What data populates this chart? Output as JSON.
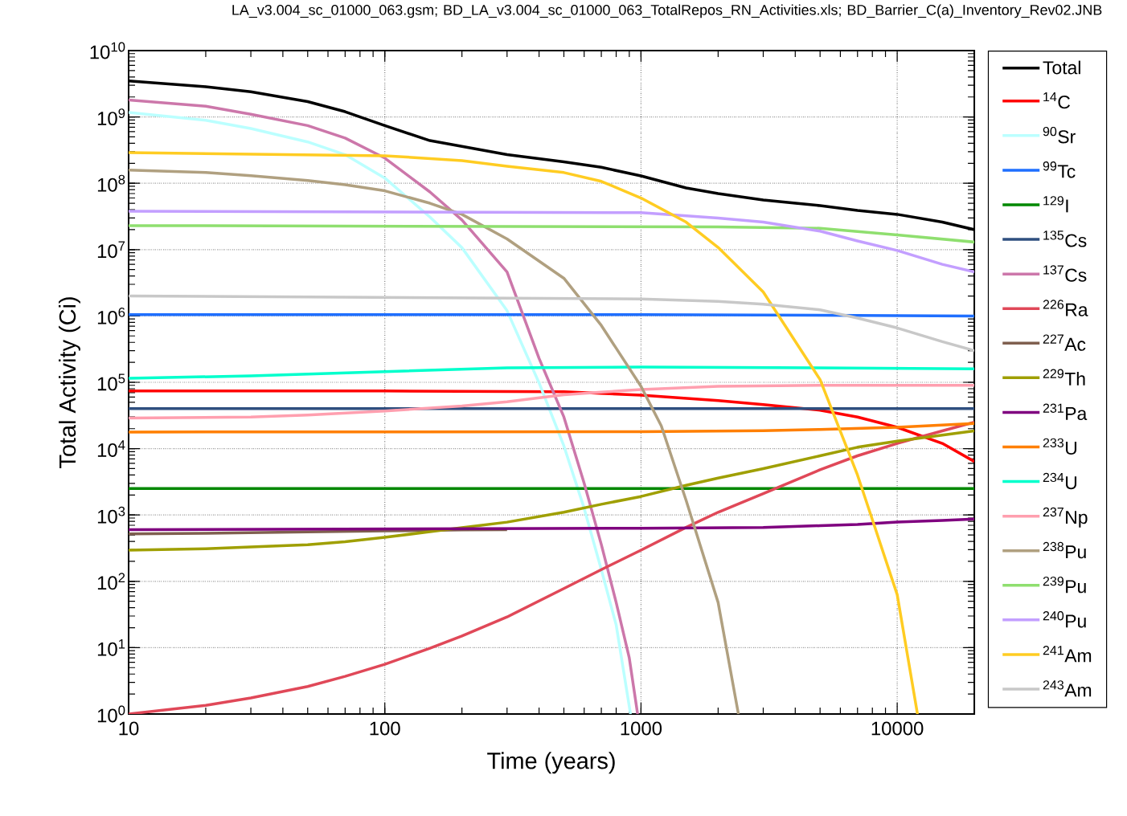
{
  "chart_data": {
    "type": "line",
    "title": "LA_v3.004_sc_01000_063.gsm; BD_LA_v3.004_sc_01000_063_TotalRepos_RN_Activities.xls; BD_Barrier_C(a)_Inventory_Rev02.JNB",
    "xlabel": "Time (years)",
    "ylabel": "Total Activity (Ci)",
    "log": "xy",
    "grid": true,
    "legend": "right",
    "marker": "none",
    "line_style": "solid",
    "xlim": [
      10,
      20000
    ],
    "ylim": [
      1,
      10000000000
    ],
    "xticks": [
      10,
      100,
      1000,
      10000
    ],
    "yticks": [
      {
        "value": 1,
        "label": "10$^{0}$"
      },
      {
        "value": 10,
        "label": "10$^{1}$"
      },
      {
        "value": 100,
        "label": "10$^{2}$"
      },
      {
        "value": 1000,
        "label": "10$^{3}$"
      },
      {
        "value": 10000,
        "label": "10$^{4}$"
      },
      {
        "value": 100000,
        "label": "10$^{5}$"
      },
      {
        "value": 1000000,
        "label": "10$^{6}$"
      },
      {
        "value": 10000000,
        "label": "10$^{7}$"
      },
      {
        "value": 100000000,
        "label": "10$^{8}$"
      },
      {
        "value": 1000000000,
        "label": "10$^{9}$"
      },
      {
        "value": 10000000000,
        "label": "10$^{10}$"
      }
    ],
    "series": [
      {
        "name": "Total",
        "color": "#000000",
        "x": [
          10,
          20,
          30,
          50,
          70,
          100,
          150,
          200,
          300,
          500,
          700,
          1000,
          1500,
          2000,
          3000,
          5000,
          7000,
          10000,
          15000,
          20000
        ],
        "values": [
          3500000000.0,
          2850000000.0,
          2400000000.0,
          1700000000.0,
          1200000000.0,
          740000000.0,
          440000000.0,
          360000000.0,
          270000000.0,
          210000000.0,
          174000000.0,
          129000000.0,
          85000000.0,
          70000000.0,
          56000000.0,
          46000000.0,
          39000000.0,
          34000000.0,
          26000000.0,
          20000000.0
        ]
      },
      {
        "name": "$^{14}$C",
        "color": "#ff0000",
        "x": [
          10,
          100,
          500,
          1000,
          2000,
          3000,
          5000,
          7000,
          10000,
          15000,
          20000
        ],
        "values": [
          74000.0,
          74000.0,
          72000.0,
          64000.0,
          53000.0,
          46000.0,
          38000.0,
          30000.0,
          21000.0,
          12000.0,
          6400.0
        ]
      },
      {
        "name": "$^{90}$Sr",
        "color": "#bbffff",
        "x": [
          10,
          20,
          30,
          50,
          70,
          100,
          150,
          200,
          300,
          400,
          500,
          600,
          700,
          800,
          910
        ],
        "values": [
          1170000000.0,
          890000000.0,
          670000000.0,
          420000000.0,
          270000000.0,
          120000000.0,
          31000000.0,
          10700000.0,
          1200000.0,
          98000.0,
          11000.0,
          1260,
          150,
          22,
          1
        ]
      },
      {
        "name": "$^{99}$Tc",
        "color": "#1f6fff",
        "x": [
          10,
          1000,
          20000
        ],
        "values": [
          1050000.0,
          1050000.0,
          1000000.0
        ]
      },
      {
        "name": "$^{129}$I",
        "color": "#008800",
        "x": [
          10,
          20000
        ],
        "values": [
          2500,
          2500
        ]
      },
      {
        "name": "$^{135}$Cs",
        "color": "#2f4f7f",
        "x": [
          10,
          20000
        ],
        "values": [
          40000.0,
          40000.0
        ]
      },
      {
        "name": "$^{137}$Cs",
        "color": "#cc77aa",
        "x": [
          10,
          20,
          30,
          50,
          70,
          100,
          150,
          200,
          300,
          400,
          500,
          600,
          700,
          800,
          900,
          970
        ],
        "values": [
          1800000000.0,
          1450000000.0,
          1100000000.0,
          740000000.0,
          480000000.0,
          240000000.0,
          74000000.0,
          28000000.0,
          4600000.0,
          230000.0,
          30000.0,
          3000,
          360,
          48,
          7,
          1
        ]
      },
      {
        "name": "$^{226}$Ra",
        "color": "#e04858",
        "x": [
          10,
          20,
          30,
          50,
          70,
          100,
          150,
          200,
          300,
          500,
          700,
          1000,
          1500,
          2000,
          3000,
          5000,
          7000,
          10000,
          15000,
          20000
        ],
        "values": [
          1.0,
          1.35,
          1.75,
          2.6,
          3.7,
          5.6,
          9.8,
          15,
          29,
          78,
          150,
          295,
          650,
          1100,
          2100,
          4800,
          7800,
          12000.0,
          18500.0,
          25000.0
        ]
      },
      {
        "name": "$^{227}$Ac",
        "color": "#7f5f4f",
        "x": [
          10,
          20,
          50,
          100,
          200,
          300
        ],
        "values": [
          520,
          530,
          555,
          575,
          595,
          600
        ]
      },
      {
        "name": "$^{229}$Th",
        "color": "#9f9f00",
        "x": [
          10,
          20,
          30,
          50,
          70,
          100,
          150,
          200,
          300,
          500,
          700,
          1000,
          1500,
          2000,
          3000,
          5000,
          7000,
          10000,
          15000,
          20000
        ],
        "values": [
          295,
          310,
          330,
          355,
          395,
          460,
          560,
          645,
          780,
          1100,
          1450,
          1900,
          2800,
          3600,
          5000,
          7800,
          10500.0,
          13000.0,
          16000.0,
          18500.0
        ]
      },
      {
        "name": "$^{231}$Pa",
        "color": "#7f007f",
        "x": [
          10,
          1000,
          3000,
          5000,
          7000,
          10000,
          15000,
          20000
        ],
        "values": [
          600,
          630,
          650,
          690,
          720,
          780,
          830,
          870
        ]
      },
      {
        "name": "$^{233}$U",
        "color": "#ff7f00",
        "x": [
          10,
          1000,
          3000,
          5000,
          10000,
          20000
        ],
        "values": [
          17800.0,
          18000.0,
          18600.0,
          19500.0,
          21000.0,
          24000.0
        ]
      },
      {
        "name": "$^{234}$U",
        "color": "#00ffcc",
        "x": [
          10,
          30,
          100,
          300,
          1000,
          20000
        ],
        "values": [
          115000.0,
          125000.0,
          145000.0,
          165000.0,
          170000.0,
          160000.0
        ]
      },
      {
        "name": "$^{237}$Np",
        "color": "#ff9faf",
        "x": [
          10,
          30,
          50,
          100,
          200,
          300,
          500,
          700,
          1000,
          2000,
          5000,
          20000
        ],
        "values": [
          29000.0,
          30000.0,
          32000.0,
          37000.0,
          44000.0,
          51000.0,
          65000.0,
          71000.0,
          78000.0,
          87000.0,
          90000.0,
          90000.0
        ]
      },
      {
        "name": "$^{238}$Pu",
        "color": "#b0a080",
        "x": [
          10,
          20,
          30,
          50,
          70,
          100,
          150,
          200,
          300,
          500,
          700,
          1000,
          1200,
          1500,
          2000,
          2400
        ],
        "values": [
          158000000.0,
          145000000.0,
          130000000.0,
          110000000.0,
          95000000.0,
          77000000.0,
          50000000.0,
          34000000.0,
          14500000.0,
          3700000.0,
          720000.0,
          87000.0,
          22000.0,
          1660,
          48,
          1
        ]
      },
      {
        "name": "$^{239}$Pu",
        "color": "#8fdf6f",
        "x": [
          10,
          2000,
          5000,
          10000,
          20000
        ],
        "values": [
          23000000.0,
          22000000.0,
          21000000.0,
          16600000.0,
          13000000.0
        ]
      },
      {
        "name": "$^{240}$Pu",
        "color": "#c39fff",
        "x": [
          10,
          1000,
          2000,
          3000,
          5000,
          7000,
          10000,
          15000,
          20000
        ],
        "values": [
          38000000.0,
          36000000.0,
          30000000.0,
          26000000.0,
          19000000.0,
          13500000.0,
          9700000.0,
          6000000.0,
          4600000.0
        ]
      },
      {
        "name": "$^{241}$Am",
        "color": "#ffcc22",
        "x": [
          10,
          100,
          200,
          300,
          500,
          700,
          1000,
          1500,
          2000,
          3000,
          5000,
          7000,
          8000,
          10000,
          12000
        ],
        "values": [
          290000000.0,
          260000000.0,
          220000000.0,
          180000000.0,
          145000000.0,
          107000000.0,
          60000000.0,
          26000000.0,
          10800000.0,
          2300000.0,
          110000.0,
          4000,
          850,
          63,
          1
        ]
      },
      {
        "name": "$^{243}$Am",
        "color": "#c8c8c8",
        "x": [
          10,
          1000,
          2000,
          3000,
          5000,
          7000,
          10000,
          15000,
          20000
        ],
        "values": [
          2000000.0,
          1800000.0,
          1660000.0,
          1500000.0,
          1240000.0,
          930000.0,
          660000.0,
          410000.0,
          300000.0
        ]
      }
    ]
  }
}
